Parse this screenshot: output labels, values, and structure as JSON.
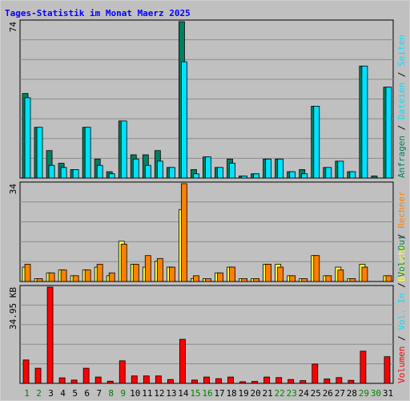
{
  "title": "Tages-Statistik im Monat Maerz 2025",
  "colors": {
    "background": "#c0c0c0",
    "grid": "#8c8c8c",
    "anfragen": "#008060",
    "dateien": "#00e0ff",
    "seiten": "#00e0ff",
    "besuche": "#ffff40",
    "rechner": "#ff8000",
    "volumen": "#ff0000",
    "weekend_label": "#008000",
    "weekday_label": "#000000"
  },
  "chart_data": [
    {
      "type": "bar",
      "title": "Tages-Statistik im Monat Maerz 2025",
      "ylabel_max": "74",
      "ylim": [
        0,
        74
      ],
      "categories": [
        "1",
        "2",
        "3",
        "4",
        "5",
        "6",
        "7",
        "8",
        "9",
        "10",
        "11",
        "12",
        "13",
        "14",
        "15",
        "16",
        "17",
        "18",
        "19",
        "20",
        "21",
        "22",
        "23",
        "24",
        "25",
        "26",
        "27",
        "28",
        "29",
        "30",
        "31"
      ],
      "weekend_days": [
        1,
        2,
        8,
        9,
        15,
        16,
        22,
        23,
        29,
        30
      ],
      "legend": [
        {
          "label": "Anfragen",
          "color_key": "anfragen"
        },
        {
          "label": "Dateien",
          "color_key": "dateien"
        },
        {
          "label": "Seiten",
          "color_key": "seiten"
        }
      ],
      "separator": "/",
      "series": [
        {
          "name": "Anfragen",
          "values": [
            40,
            24,
            13,
            7,
            4,
            24,
            9,
            3,
            27,
            11,
            11,
            13,
            5,
            74,
            4,
            10,
            5,
            9,
            1,
            2,
            9,
            9,
            3,
            4,
            34,
            5,
            8,
            3,
            53,
            1,
            43
          ]
        },
        {
          "name": "Dateien",
          "values": [
            38,
            24,
            6,
            5,
            4,
            24,
            6,
            2,
            27,
            9,
            6,
            8,
            5,
            55,
            2,
            10,
            5,
            7,
            1,
            2,
            9,
            9,
            3,
            2,
            34,
            5,
            8,
            3,
            53,
            0,
            43
          ]
        }
      ]
    },
    {
      "type": "bar",
      "ylabel_max": "34",
      "ylim": [
        0,
        34
      ],
      "categories": [
        "1",
        "2",
        "3",
        "4",
        "5",
        "6",
        "7",
        "8",
        "9",
        "10",
        "11",
        "12",
        "13",
        "14",
        "15",
        "16",
        "17",
        "18",
        "19",
        "20",
        "21",
        "22",
        "23",
        "24",
        "25",
        "26",
        "27",
        "28",
        "29",
        "30",
        "31"
      ],
      "legend": [
        {
          "label": "Besuche",
          "color_key": "besuche"
        },
        {
          "label": "Rechner",
          "color_key": "rechner"
        }
      ],
      "separator": "/",
      "series": [
        {
          "name": "Besuche",
          "values": [
            5,
            1,
            3,
            4,
            2,
            4,
            5,
            2,
            14,
            6,
            5,
            7,
            5,
            25,
            1,
            1,
            3,
            5,
            1,
            1,
            6,
            6,
            2,
            1,
            9,
            2,
            5,
            1,
            6,
            0,
            2
          ]
        },
        {
          "name": "Rechner",
          "values": [
            6,
            1,
            3,
            4,
            2,
            4,
            6,
            3,
            13,
            6,
            9,
            8,
            5,
            34,
            2,
            1,
            3,
            5,
            1,
            1,
            6,
            5,
            2,
            1,
            9,
            2,
            4,
            1,
            5,
            0,
            2
          ]
        }
      ]
    },
    {
      "type": "bar",
      "ylabel_max": "34.95 KB",
      "ylim": [
        0,
        34.95
      ],
      "categories": [
        "1",
        "2",
        "3",
        "4",
        "5",
        "6",
        "7",
        "8",
        "9",
        "10",
        "11",
        "12",
        "13",
        "14",
        "15",
        "16",
        "17",
        "18",
        "19",
        "20",
        "21",
        "22",
        "23",
        "24",
        "25",
        "26",
        "27",
        "28",
        "29",
        "30",
        "31"
      ],
      "legend": [
        {
          "label": "Volumen",
          "color_key": "volumen"
        },
        {
          "label": "Vol. In",
          "color_key": "dateien"
        },
        {
          "label": "Vol. Out",
          "color_key": "anfragen"
        }
      ],
      "separator": "/",
      "series": [
        {
          "name": "Volumen",
          "values": [
            8.5,
            5.5,
            34.95,
            2.0,
            1.2,
            5.5,
            2.3,
            0.8,
            8.2,
            2.7,
            2.7,
            2.7,
            1.4,
            16.0,
            1.2,
            2.3,
            1.7,
            2.3,
            0.6,
            0.7,
            2.3,
            2.1,
            1.4,
            1.0,
            7.0,
            1.6,
            2.1,
            1.1,
            11.7,
            0.0,
            9.7
          ]
        }
      ]
    }
  ]
}
